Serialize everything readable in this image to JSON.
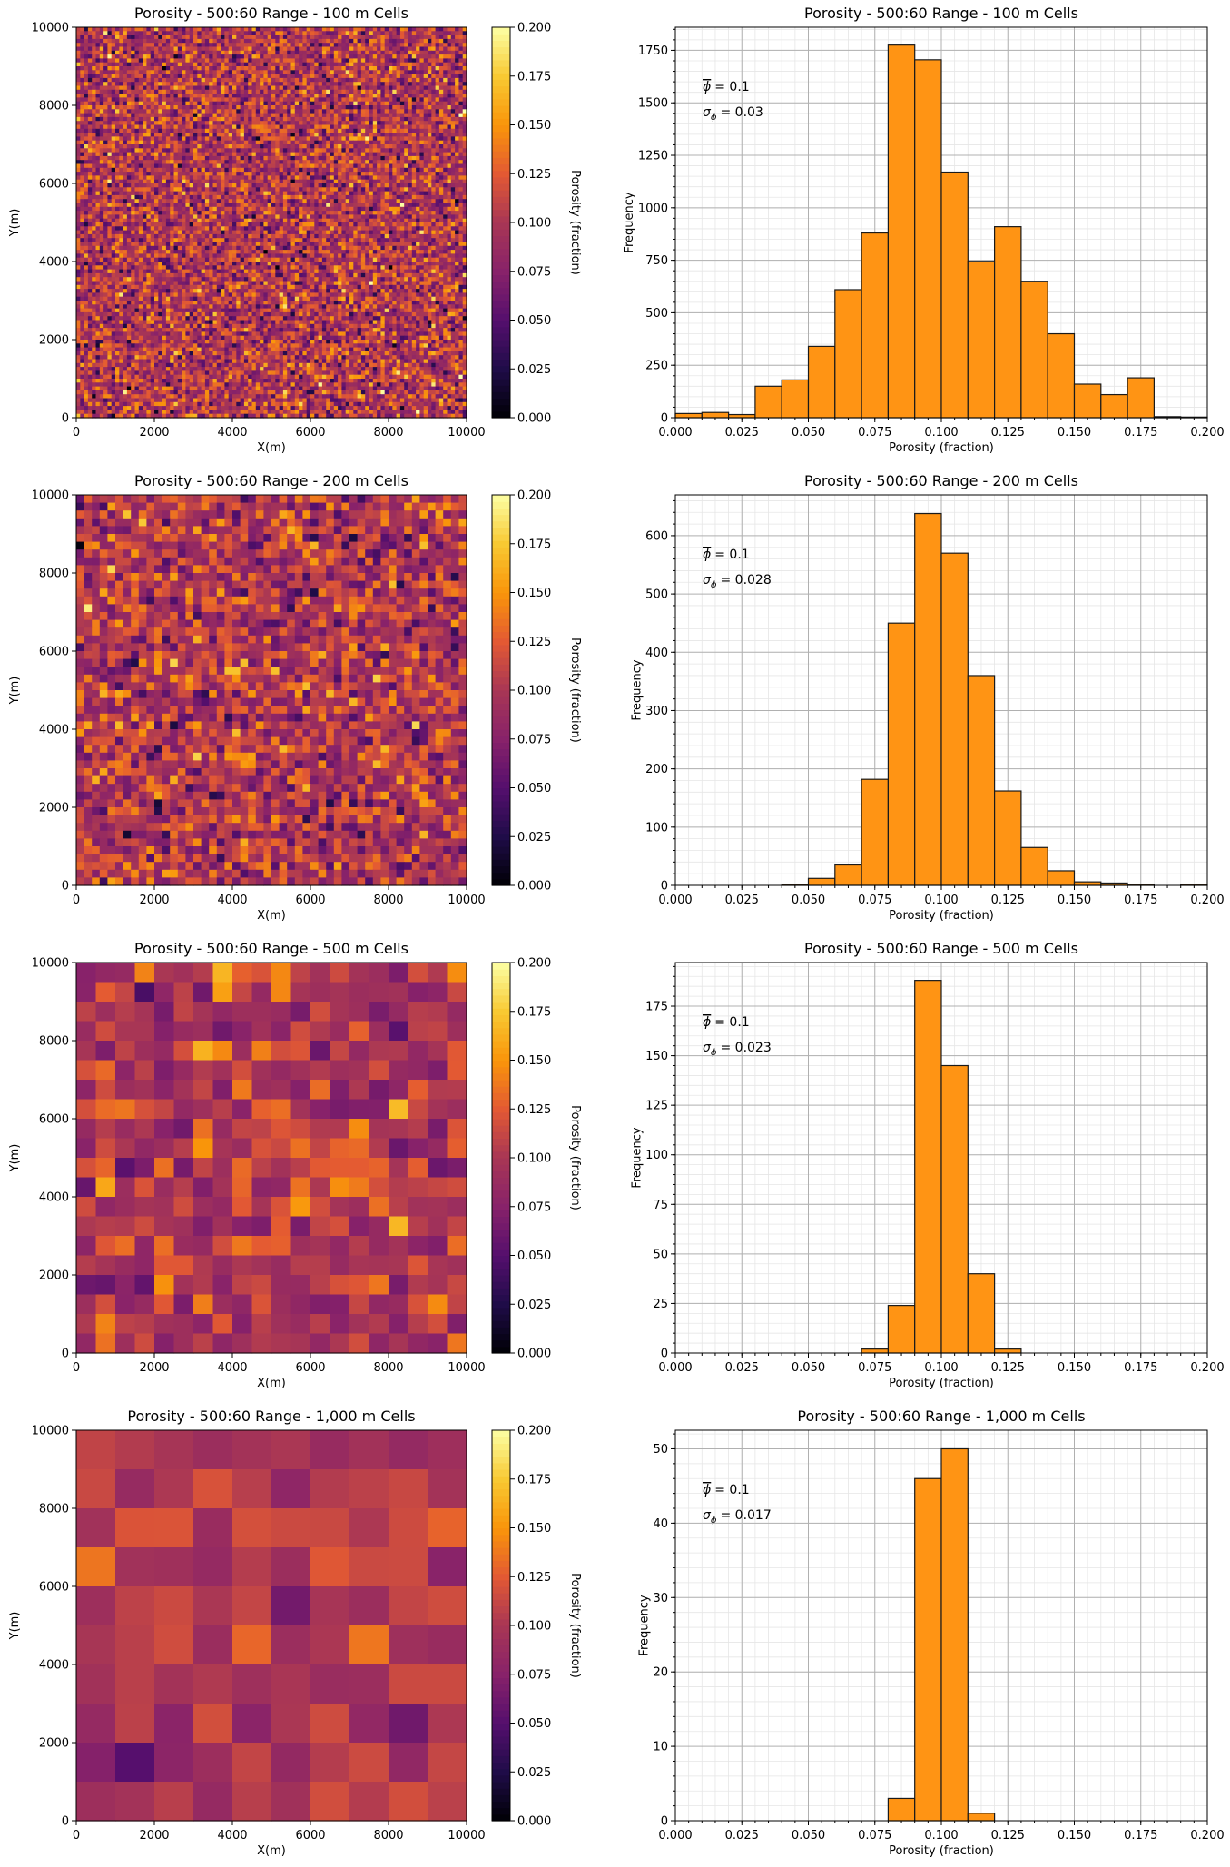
{
  "figure": {
    "colorbar_label": "Porosity (fraction)",
    "map_xlabel": "X(m)",
    "map_ylabel": "Y(m)",
    "hist_xlabel": "Porosity (fraction)",
    "hist_ylabel": "Frequency",
    "colormap": [
      "#000004",
      "#1f0c48",
      "#550f6d",
      "#88226a",
      "#a83655",
      "#e35933",
      "#f9950a",
      "#f8c932",
      "#fcffa4"
    ],
    "bar_color": "#ff9414",
    "bar_edge_color": "#1a1a1a"
  },
  "chart_data": [
    {
      "type": "heatmap",
      "title": "Porosity - 500:60 Range - 100 m Cells",
      "xlabel": "X(m)",
      "ylabel": "Y(m)",
      "xlim": [
        0,
        10000
      ],
      "ylim": [
        0,
        10000
      ],
      "xticks": [
        "0",
        "2000",
        "4000",
        "6000",
        "8000",
        "10000"
      ],
      "yticks": [
        "0",
        "2000",
        "4000",
        "6000",
        "8000",
        "10000"
      ],
      "cells_per_side": 100,
      "mean": 0.1,
      "std": 0.03,
      "colorbar": {
        "label": "Porosity (fraction)",
        "range": [
          0.0,
          0.2
        ],
        "ticks": [
          "0.000",
          "0.025",
          "0.050",
          "0.075",
          "0.100",
          "0.125",
          "0.150",
          "0.175",
          "0.200"
        ]
      }
    },
    {
      "type": "bar",
      "title": "Porosity - 500:60 Range - 100 m Cells",
      "xlabel": "Porosity (fraction)",
      "ylabel": "Frequency",
      "bin_edges": [
        0.0,
        0.01,
        0.02,
        0.03,
        0.04,
        0.05,
        0.06,
        0.07,
        0.08,
        0.09,
        0.1,
        0.11,
        0.12,
        0.13,
        0.14,
        0.15,
        0.16,
        0.17,
        0.18,
        0.19,
        0.2
      ],
      "values": [
        20,
        25,
        15,
        150,
        180,
        340,
        610,
        880,
        1775,
        1705,
        1170,
        745,
        910,
        650,
        400,
        160,
        110,
        190,
        5,
        3
      ],
      "xlim": [
        0.0,
        0.2
      ],
      "ylim": [
        0,
        1860
      ],
      "xticks": [
        "0.000",
        "0.025",
        "0.050",
        "0.075",
        "0.100",
        "0.125",
        "0.150",
        "0.175",
        "0.200"
      ],
      "yticks": [
        "0",
        "250",
        "500",
        "750",
        "1000",
        "1250",
        "1500",
        "1750"
      ],
      "minor_step": 50,
      "grid": true,
      "annotations": {
        "mean": "= 0.1",
        "std": "= 0.03"
      }
    },
    {
      "type": "heatmap",
      "title": "Porosity - 500:60 Range - 200 m Cells",
      "xlabel": "X(m)",
      "ylabel": "Y(m)",
      "xlim": [
        0,
        10000
      ],
      "ylim": [
        0,
        10000
      ],
      "xticks": [
        "0",
        "2000",
        "4000",
        "6000",
        "8000",
        "10000"
      ],
      "yticks": [
        "0",
        "2000",
        "4000",
        "6000",
        "8000",
        "10000"
      ],
      "cells_per_side": 50,
      "mean": 0.1,
      "std": 0.028,
      "colorbar": {
        "label": "Porosity (fraction)",
        "range": [
          0.0,
          0.2
        ],
        "ticks": [
          "0.000",
          "0.025",
          "0.050",
          "0.075",
          "0.100",
          "0.125",
          "0.150",
          "0.175",
          "0.200"
        ]
      }
    },
    {
      "type": "bar",
      "title": "Porosity - 500:60 Range - 200 m Cells",
      "xlabel": "Porosity (fraction)",
      "ylabel": "Frequency",
      "bin_edges": [
        0.0,
        0.01,
        0.02,
        0.03,
        0.04,
        0.05,
        0.06,
        0.07,
        0.08,
        0.09,
        0.1,
        0.11,
        0.12,
        0.13,
        0.14,
        0.15,
        0.16,
        0.17,
        0.18,
        0.19,
        0.2
      ],
      "values": [
        0,
        0,
        0,
        0,
        2,
        12,
        35,
        182,
        450,
        638,
        570,
        360,
        162,
        65,
        25,
        6,
        4,
        2,
        0,
        2
      ],
      "xlim": [
        0.0,
        0.2
      ],
      "ylim": [
        0,
        670
      ],
      "xticks": [
        "0.000",
        "0.025",
        "0.050",
        "0.075",
        "0.100",
        "0.125",
        "0.150",
        "0.175",
        "0.200"
      ],
      "yticks": [
        "0",
        "100",
        "200",
        "300",
        "400",
        "500",
        "600"
      ],
      "minor_step": 20,
      "grid": true,
      "annotations": {
        "mean": "= 0.1",
        "std": "= 0.028"
      }
    },
    {
      "type": "heatmap",
      "title": "Porosity - 500:60 Range - 500 m Cells",
      "xlabel": "X(m)",
      "ylabel": "Y(m)",
      "xlim": [
        0,
        10000
      ],
      "ylim": [
        0,
        10000
      ],
      "xticks": [
        "0",
        "2000",
        "4000",
        "6000",
        "8000",
        "10000"
      ],
      "yticks": [
        "0",
        "2000",
        "4000",
        "6000",
        "8000",
        "10000"
      ],
      "cells_per_side": 20,
      "mean": 0.1,
      "std": 0.023,
      "colorbar": {
        "label": "Porosity (fraction)",
        "range": [
          0.0,
          0.2
        ],
        "ticks": [
          "0.000",
          "0.025",
          "0.050",
          "0.075",
          "0.100",
          "0.125",
          "0.150",
          "0.175",
          "0.200"
        ]
      }
    },
    {
      "type": "bar",
      "title": "Porosity - 500:60 Range - 500 m Cells",
      "xlabel": "Porosity (fraction)",
      "ylabel": "Frequency",
      "bin_edges": [
        0.0,
        0.01,
        0.02,
        0.03,
        0.04,
        0.05,
        0.06,
        0.07,
        0.08,
        0.09,
        0.1,
        0.11,
        0.12,
        0.13,
        0.14,
        0.15,
        0.16,
        0.17,
        0.18,
        0.19,
        0.2
      ],
      "values": [
        0,
        0,
        0,
        0,
        0,
        0,
        0,
        2,
        24,
        188,
        145,
        40,
        2,
        0,
        0,
        0,
        0,
        0,
        0,
        0
      ],
      "xlim": [
        0.0,
        0.2
      ],
      "ylim": [
        0,
        197
      ],
      "xticks": [
        "0.000",
        "0.025",
        "0.050",
        "0.075",
        "0.100",
        "0.125",
        "0.150",
        "0.175",
        "0.200"
      ],
      "yticks": [
        "0",
        "25",
        "50",
        "75",
        "100",
        "125",
        "150",
        "175"
      ],
      "minor_step": 5,
      "grid": true,
      "annotations": {
        "mean": "= 0.1",
        "std": "= 0.023"
      }
    },
    {
      "type": "heatmap",
      "title": "Porosity - 500:60 Range - 1,000 m Cells",
      "xlabel": "X(m)",
      "ylabel": "Y(m)",
      "xlim": [
        0,
        10000
      ],
      "ylim": [
        0,
        10000
      ],
      "xticks": [
        "0",
        "2000",
        "4000",
        "6000",
        "8000",
        "10000"
      ],
      "yticks": [
        "0",
        "2000",
        "4000",
        "6000",
        "8000",
        "10000"
      ],
      "cells_per_side": 10,
      "mean": 0.1,
      "std": 0.017,
      "colorbar": {
        "label": "Porosity (fraction)",
        "range": [
          0.0,
          0.2
        ],
        "ticks": [
          "0.000",
          "0.025",
          "0.050",
          "0.075",
          "0.100",
          "0.125",
          "0.150",
          "0.175",
          "0.200"
        ]
      }
    },
    {
      "type": "bar",
      "title": "Porosity - 500:60 Range - 1,000 m Cells",
      "xlabel": "Porosity (fraction)",
      "ylabel": "Frequency",
      "bin_edges": [
        0.0,
        0.01,
        0.02,
        0.03,
        0.04,
        0.05,
        0.06,
        0.07,
        0.08,
        0.09,
        0.1,
        0.11,
        0.12,
        0.13,
        0.14,
        0.15,
        0.16,
        0.17,
        0.18,
        0.19,
        0.2
      ],
      "values": [
        0,
        0,
        0,
        0,
        0,
        0,
        0,
        0,
        3,
        46,
        50,
        1,
        0,
        0,
        0,
        0,
        0,
        0,
        0,
        0
      ],
      "xlim": [
        0.0,
        0.2
      ],
      "ylim": [
        0,
        52.5
      ],
      "xticks": [
        "0.000",
        "0.025",
        "0.050",
        "0.075",
        "0.100",
        "0.125",
        "0.150",
        "0.175",
        "0.200"
      ],
      "yticks": [
        "0",
        "10",
        "20",
        "30",
        "40",
        "50"
      ],
      "minor_step": 2,
      "grid": true,
      "annotations": {
        "mean": "= 0.1",
        "std": "= 0.017"
      }
    }
  ]
}
